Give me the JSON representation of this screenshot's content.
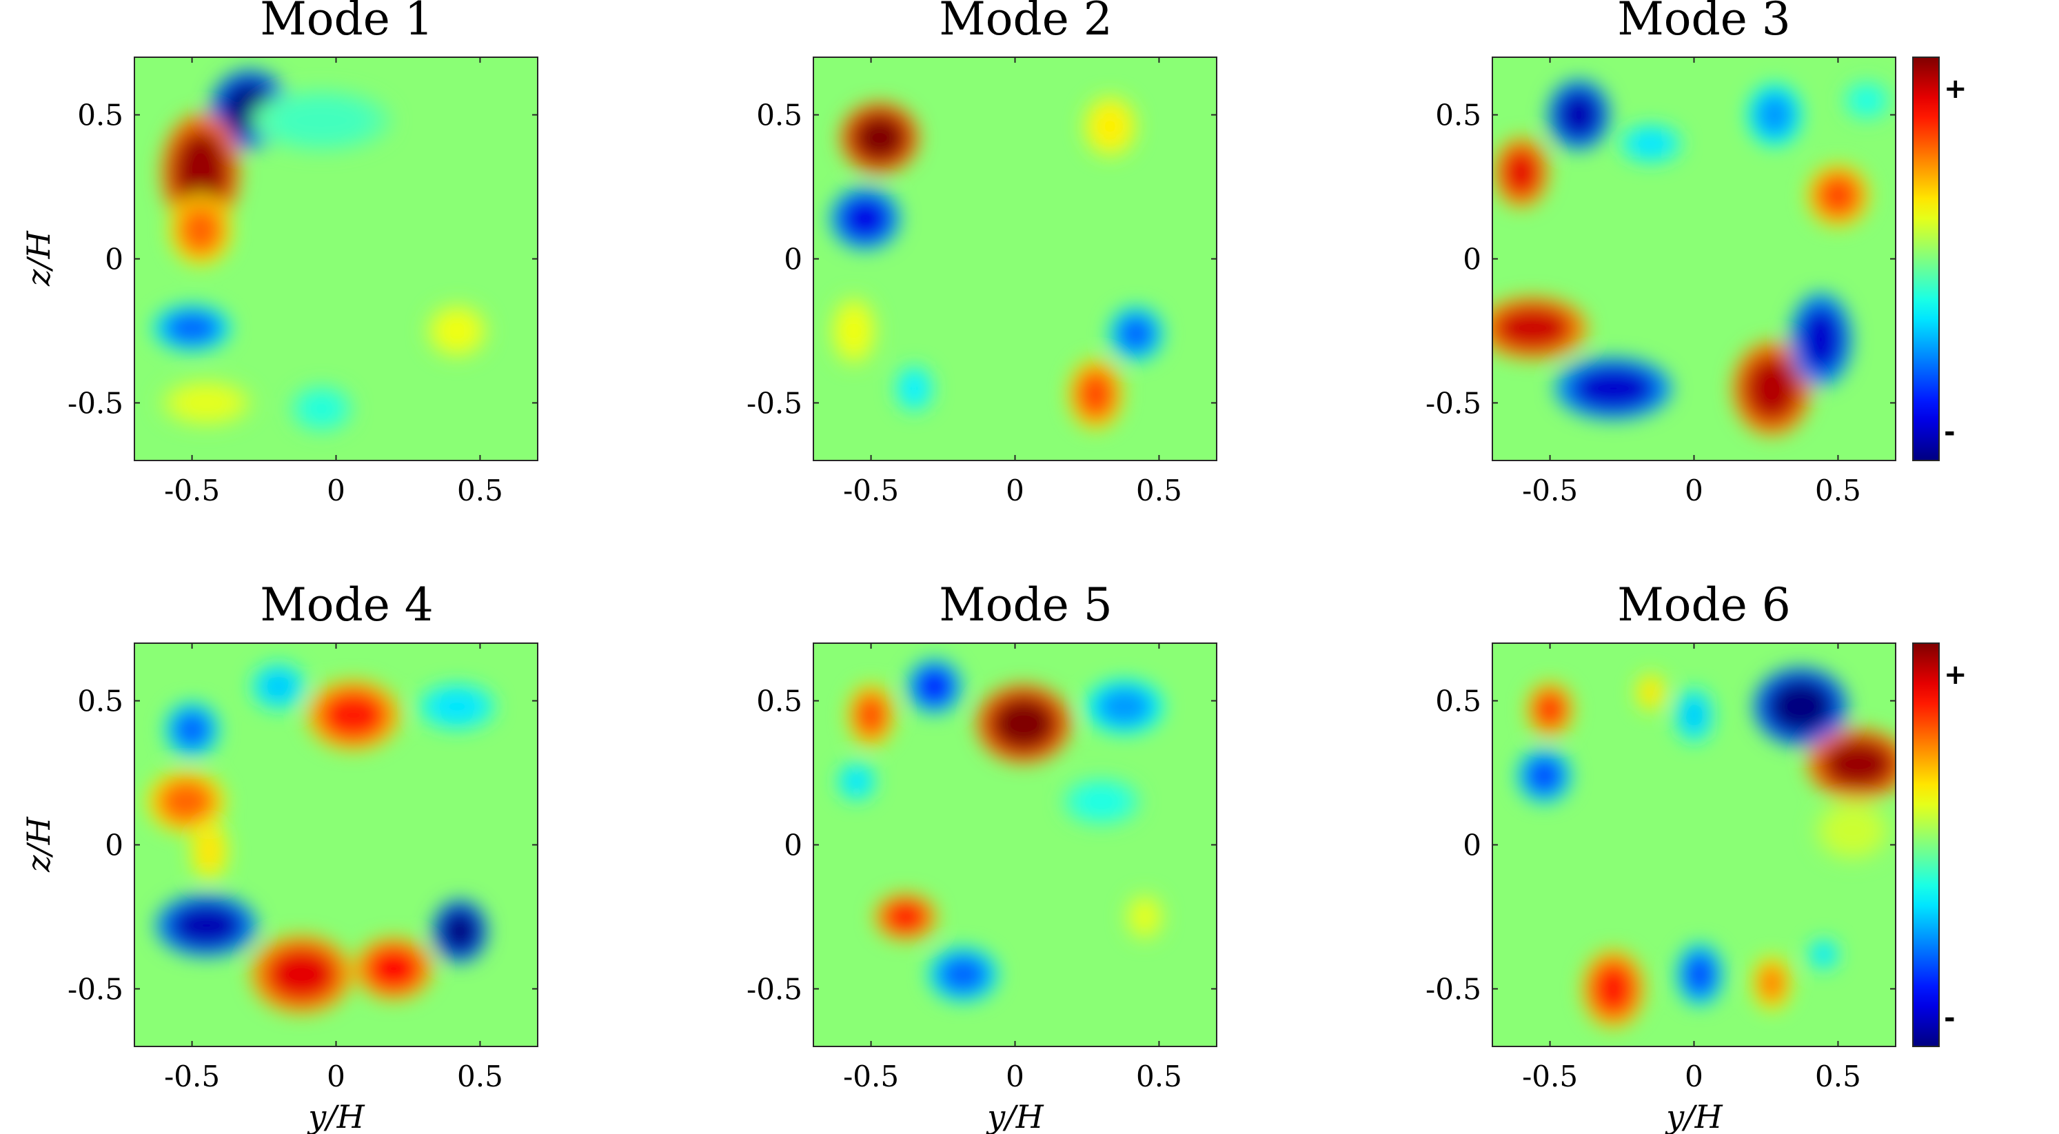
{
  "chart_data": [
    {
      "type": "heatmap",
      "title": "Mode 1",
      "xlabel": "",
      "ylabel": "z/H",
      "xlim": [
        -0.7,
        0.7
      ],
      "ylim": [
        -0.7,
        0.7
      ],
      "xticks": [
        "-0.5",
        "0",
        "0.5"
      ],
      "yticks": [
        "-0.5",
        "0",
        "0.5"
      ],
      "blobs": [
        {
          "y": -0.3,
          "z": 0.52,
          "rx": 0.1,
          "rz": 0.1,
          "v": -1.0
        },
        {
          "y": -0.47,
          "z": 0.3,
          "rx": 0.1,
          "rz": 0.15,
          "v": 0.95
        },
        {
          "y": -0.47,
          "z": 0.1,
          "rx": 0.08,
          "rz": 0.09,
          "v": 0.55
        },
        {
          "y": -0.5,
          "z": -0.24,
          "rx": 0.1,
          "rz": 0.06,
          "v": -0.55
        },
        {
          "y": -0.45,
          "z": -0.5,
          "rx": 0.12,
          "rz": 0.06,
          "v": 0.2
        },
        {
          "y": 0.42,
          "z": -0.25,
          "rx": 0.08,
          "rz": 0.07,
          "v": 0.22
        },
        {
          "y": -0.05,
          "z": -0.52,
          "rx": 0.08,
          "rz": 0.06,
          "v": -0.18
        },
        {
          "y": -0.05,
          "z": 0.48,
          "rx": 0.18,
          "rz": 0.08,
          "v": -0.12
        }
      ]
    },
    {
      "type": "heatmap",
      "title": "Mode 2",
      "xlabel": "",
      "ylabel": "",
      "xlim": [
        -0.7,
        0.7
      ],
      "ylim": [
        -0.7,
        0.7
      ],
      "xticks": [
        "-0.5",
        "0",
        "0.5"
      ],
      "yticks": [
        "-0.5",
        "0",
        "0.5"
      ],
      "blobs": [
        {
          "y": -0.47,
          "z": 0.42,
          "rx": 0.1,
          "rz": 0.09,
          "v": 1.0
        },
        {
          "y": -0.52,
          "z": 0.14,
          "rx": 0.09,
          "rz": 0.08,
          "v": -0.8
        },
        {
          "y": 0.42,
          "z": -0.26,
          "rx": 0.07,
          "rz": 0.07,
          "v": -0.55
        },
        {
          "y": 0.28,
          "z": -0.47,
          "rx": 0.07,
          "rz": 0.09,
          "v": 0.6
        },
        {
          "y": 0.33,
          "z": 0.46,
          "rx": 0.07,
          "rz": 0.08,
          "v": 0.28
        },
        {
          "y": -0.56,
          "z": -0.25,
          "rx": 0.06,
          "rz": 0.09,
          "v": 0.22
        },
        {
          "y": -0.35,
          "z": -0.45,
          "rx": 0.05,
          "rz": 0.06,
          "v": -0.28
        }
      ]
    },
    {
      "type": "heatmap",
      "title": "Mode 3",
      "xlabel": "",
      "ylabel": "",
      "xlim": [
        -0.7,
        0.7
      ],
      "ylim": [
        -0.7,
        0.7
      ],
      "xticks": [
        "-0.5",
        "0",
        "0.5"
      ],
      "yticks": [
        "-0.5",
        "0",
        "0.5"
      ],
      "colorbar": {
        "max_label": "+",
        "min_label": "-"
      },
      "blobs": [
        {
          "y": -0.4,
          "z": 0.5,
          "rx": 0.08,
          "rz": 0.09,
          "v": -0.9
        },
        {
          "y": -0.6,
          "z": 0.3,
          "rx": 0.07,
          "rz": 0.09,
          "v": 0.8
        },
        {
          "y": -0.56,
          "z": -0.24,
          "rx": 0.14,
          "rz": 0.08,
          "v": 0.85
        },
        {
          "y": -0.28,
          "z": -0.45,
          "rx": 0.15,
          "rz": 0.08,
          "v": -0.85
        },
        {
          "y": 0.27,
          "z": -0.45,
          "rx": 0.1,
          "rz": 0.12,
          "v": 0.9
        },
        {
          "y": 0.44,
          "z": -0.28,
          "rx": 0.08,
          "rz": 0.12,
          "v": -0.85
        },
        {
          "y": 0.5,
          "z": 0.22,
          "rx": 0.08,
          "rz": 0.08,
          "v": 0.6
        },
        {
          "y": 0.28,
          "z": 0.5,
          "rx": 0.07,
          "rz": 0.08,
          "v": -0.45
        },
        {
          "y": -0.15,
          "z": 0.4,
          "rx": 0.08,
          "rz": 0.05,
          "v": -0.3
        },
        {
          "y": 0.6,
          "z": 0.55,
          "rx": 0.06,
          "rz": 0.05,
          "v": -0.2
        }
      ]
    },
    {
      "type": "heatmap",
      "title": "Mode 4",
      "xlabel": "y/H",
      "ylabel": "z/H",
      "xlim": [
        -0.7,
        0.7
      ],
      "ylim": [
        -0.7,
        0.7
      ],
      "xticks": [
        "-0.5",
        "0",
        "0.5"
      ],
      "yticks": [
        "-0.5",
        "0",
        "0.5"
      ],
      "blobs": [
        {
          "y": -0.5,
          "z": 0.4,
          "rx": 0.07,
          "rz": 0.07,
          "v": -0.55
        },
        {
          "y": -0.2,
          "z": 0.55,
          "rx": 0.07,
          "rz": 0.06,
          "v": -0.35
        },
        {
          "y": 0.06,
          "z": 0.45,
          "rx": 0.12,
          "rz": 0.09,
          "v": 0.7
        },
        {
          "y": 0.42,
          "z": 0.48,
          "rx": 0.1,
          "rz": 0.06,
          "v": -0.3
        },
        {
          "y": -0.52,
          "z": 0.15,
          "rx": 0.1,
          "rz": 0.08,
          "v": 0.55
        },
        {
          "y": -0.45,
          "z": -0.28,
          "rx": 0.13,
          "rz": 0.08,
          "v": -0.9
        },
        {
          "y": -0.12,
          "z": -0.45,
          "rx": 0.13,
          "rz": 0.1,
          "v": 0.8
        },
        {
          "y": 0.2,
          "z": -0.43,
          "rx": 0.1,
          "rz": 0.08,
          "v": 0.75
        },
        {
          "y": 0.43,
          "z": -0.3,
          "rx": 0.07,
          "rz": 0.08,
          "v": -1.0
        },
        {
          "y": -0.44,
          "z": -0.02,
          "rx": 0.05,
          "rz": 0.08,
          "v": 0.3
        }
      ]
    },
    {
      "type": "heatmap",
      "title": "Mode 5",
      "xlabel": "y/H",
      "ylabel": "",
      "xlim": [
        -0.7,
        0.7
      ],
      "ylim": [
        -0.7,
        0.7
      ],
      "xticks": [
        "-0.5",
        "0",
        "0.5"
      ],
      "yticks": [
        "-0.5",
        "0",
        "0.5"
      ],
      "blobs": [
        {
          "y": -0.5,
          "z": 0.45,
          "rx": 0.06,
          "rz": 0.08,
          "v": 0.6
        },
        {
          "y": -0.28,
          "z": 0.55,
          "rx": 0.07,
          "rz": 0.07,
          "v": -0.7
        },
        {
          "y": 0.03,
          "z": 0.42,
          "rx": 0.12,
          "rz": 0.1,
          "v": 1.0
        },
        {
          "y": 0.38,
          "z": 0.48,
          "rx": 0.1,
          "rz": 0.07,
          "v": -0.45
        },
        {
          "y": -0.55,
          "z": 0.22,
          "rx": 0.05,
          "rz": 0.05,
          "v": -0.3
        },
        {
          "y": -0.38,
          "z": -0.25,
          "rx": 0.08,
          "rz": 0.06,
          "v": 0.75
        },
        {
          "y": -0.18,
          "z": -0.45,
          "rx": 0.09,
          "rz": 0.07,
          "v": -0.55
        },
        {
          "y": 0.45,
          "z": -0.25,
          "rx": 0.05,
          "rz": 0.06,
          "v": 0.2
        },
        {
          "y": 0.3,
          "z": 0.15,
          "rx": 0.1,
          "rz": 0.06,
          "v": -0.2
        }
      ]
    },
    {
      "type": "heatmap",
      "title": "Mode 6",
      "xlabel": "y/H",
      "ylabel": "",
      "xlim": [
        -0.7,
        0.7
      ],
      "ylim": [
        -0.7,
        0.7
      ],
      "xticks": [
        "-0.5",
        "0",
        "0.5"
      ],
      "yticks": [
        "-0.5",
        "0",
        "0.5"
      ],
      "colorbar": {
        "max_label": "+",
        "min_label": "-"
      },
      "blobs": [
        {
          "y": -0.5,
          "z": 0.47,
          "rx": 0.06,
          "rz": 0.07,
          "v": 0.65
        },
        {
          "y": -0.15,
          "z": 0.53,
          "rx": 0.04,
          "rz": 0.05,
          "v": 0.3
        },
        {
          "y": -0.52,
          "z": 0.24,
          "rx": 0.07,
          "rz": 0.07,
          "v": -0.6
        },
        {
          "y": 0.0,
          "z": 0.45,
          "rx": 0.05,
          "rz": 0.07,
          "v": -0.35
        },
        {
          "y": 0.37,
          "z": 0.48,
          "rx": 0.12,
          "rz": 0.1,
          "v": -1.0
        },
        {
          "y": 0.57,
          "z": 0.28,
          "rx": 0.13,
          "rz": 0.09,
          "v": 0.95
        },
        {
          "y": -0.28,
          "z": -0.5,
          "rx": 0.08,
          "rz": 0.1,
          "v": 0.7
        },
        {
          "y": 0.02,
          "z": -0.45,
          "rx": 0.06,
          "rz": 0.08,
          "v": -0.6
        },
        {
          "y": 0.27,
          "z": -0.48,
          "rx": 0.05,
          "rz": 0.07,
          "v": 0.5
        },
        {
          "y": 0.45,
          "z": -0.38,
          "rx": 0.04,
          "rz": 0.04,
          "v": -0.3
        },
        {
          "y": 0.55,
          "z": 0.05,
          "rx": 0.1,
          "rz": 0.08,
          "v": 0.15
        }
      ]
    }
  ]
}
